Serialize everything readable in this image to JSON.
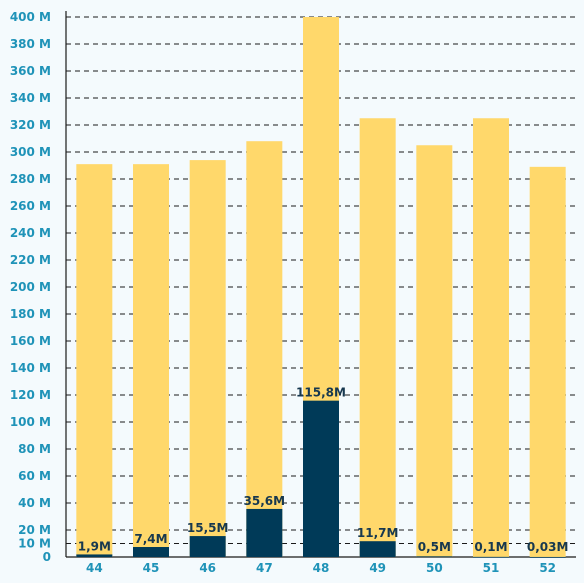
{
  "chart_data": {
    "type": "bar",
    "categories": [
      "44",
      "45",
      "46",
      "47",
      "48",
      "49",
      "50",
      "51",
      "52"
    ],
    "series": [
      {
        "values": [
          291,
          291,
          294,
          308,
          400,
          325,
          305,
          325,
          289
        ]
      },
      {
        "values": [
          1.9,
          7.4,
          15.5,
          35.6,
          115.8,
          11.7,
          0.5,
          0.1,
          0.03
        ]
      }
    ],
    "data_labels": [
      "1,9M",
      "7,4M",
      "15,5M",
      "35,6M",
      "115,8M",
      "11,7M",
      "0,5M",
      "0,1M",
      "0,03M"
    ],
    "yticks": [
      0,
      10,
      20,
      40,
      60,
      80,
      100,
      120,
      140,
      160,
      180,
      200,
      220,
      240,
      260,
      280,
      300,
      320,
      340,
      360,
      380,
      400
    ],
    "ytick_labels": [
      "0",
      "10 M",
      "20 M",
      "40 M",
      "60 M",
      "80 M",
      "100 M",
      "120 M",
      "140 M",
      "160 M",
      "180 M",
      "200 M",
      "220 M",
      "240 M",
      "260 M",
      "280 M",
      "300 M",
      "320 M",
      "340 M",
      "360 M",
      "380 M",
      "400 M"
    ],
    "ylim": [
      0,
      400
    ],
    "grid": true,
    "legend": "none",
    "colors": {
      "back": "#ffd86b",
      "front": "#003a58",
      "tick": "#1f93b8",
      "label": "#17384f"
    }
  }
}
